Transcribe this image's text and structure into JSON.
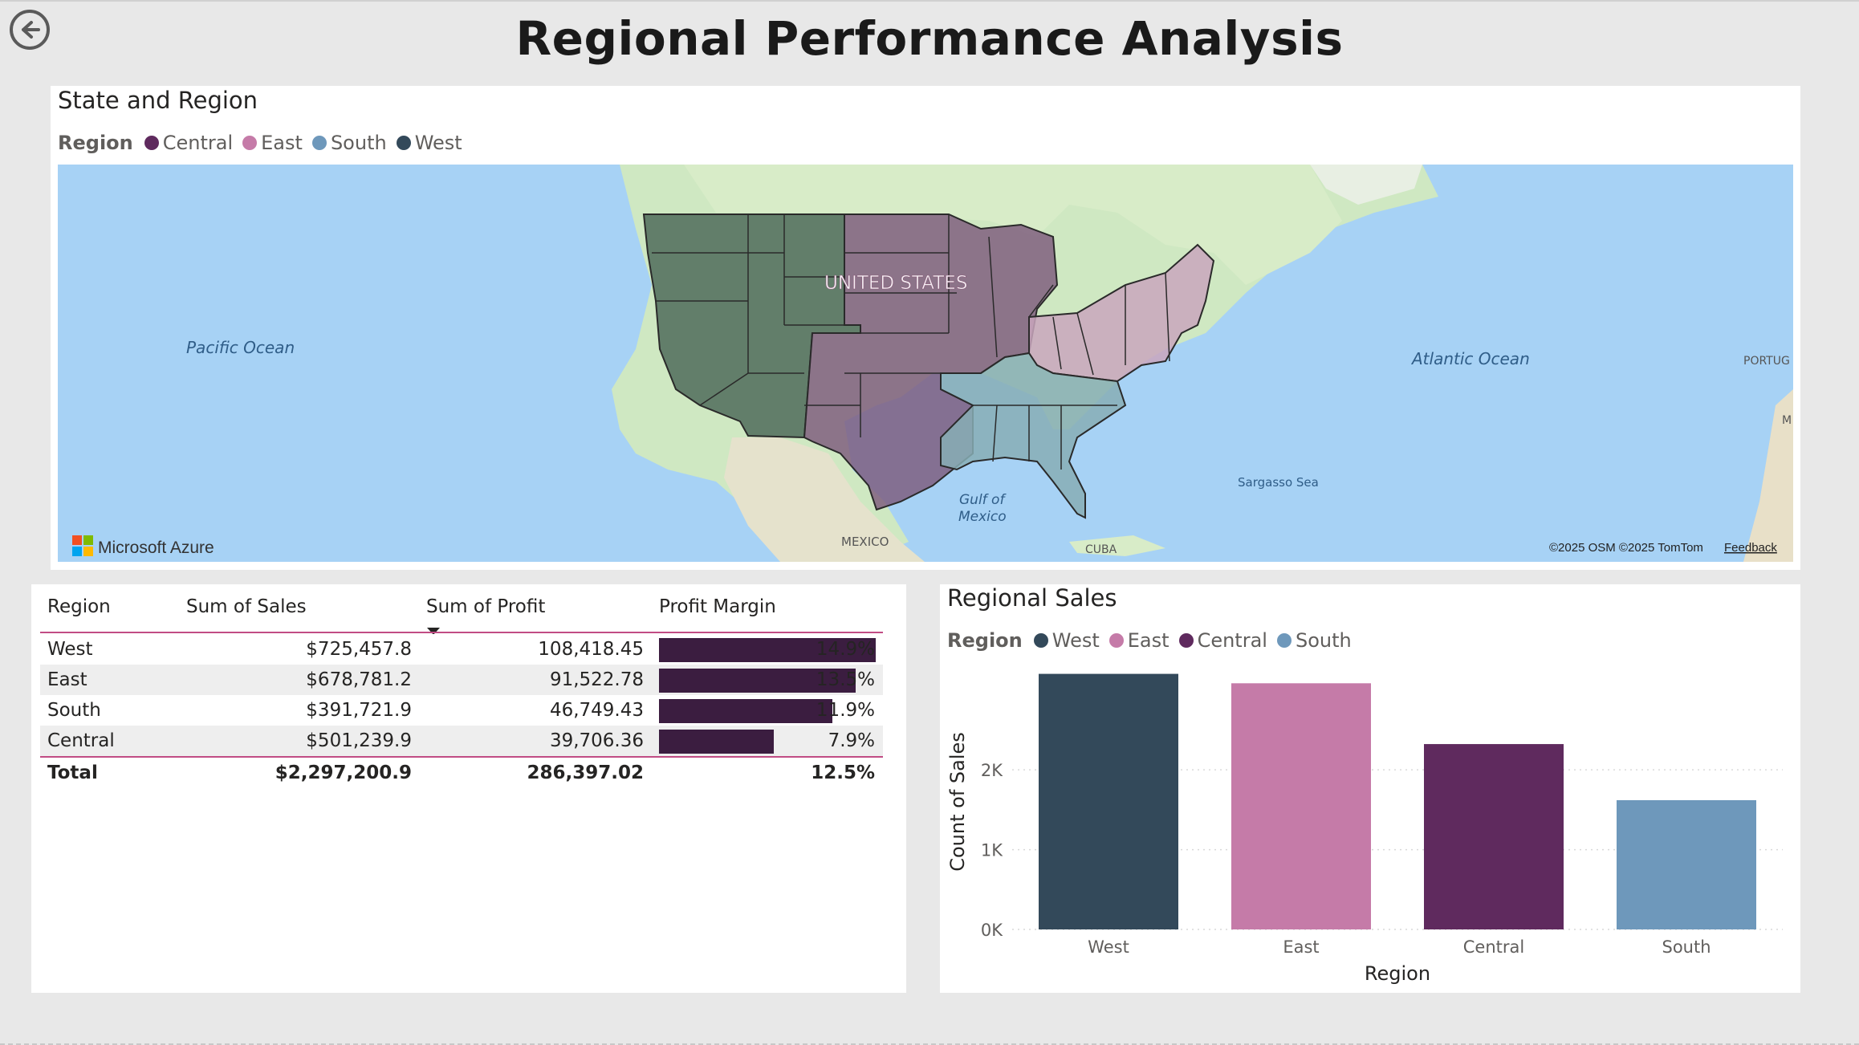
{
  "page": {
    "title": "Regional Performance Analysis"
  },
  "map_panel": {
    "title": "State and Region",
    "legend": {
      "title": "Region",
      "items": [
        {
          "label": "Central",
          "color": "#5f2a5e"
        },
        {
          "label": "East",
          "color": "#c57ba8"
        },
        {
          "label": "South",
          "color": "#6e98bb"
        },
        {
          "label": "West",
          "color": "#33495a"
        }
      ]
    },
    "labels": {
      "country": "UNITED STATES",
      "pacific": "Pacific Ocean",
      "atlantic": "Atlantic Ocean",
      "gulf_line1": "Gulf of",
      "gulf_line2": "Mexico",
      "sargasso": "Sargasso Sea",
      "mexico": "MEXICO",
      "cuba": "CUBA",
      "portugal": "PORTUG",
      "morocco": "M"
    },
    "provider": "Microsoft Azure",
    "attribution": "©2025 OSM  ©2025 TomTom",
    "feedback": "Feedback"
  },
  "table_panel": {
    "columns": [
      "Region",
      "Sum of Sales",
      "Sum of Profit",
      "Profit Margin"
    ],
    "rows": [
      {
        "region": "West",
        "sales": "$725,457.8",
        "profit": "108,418.45",
        "margin": "14.9%",
        "margin_value": 14.9
      },
      {
        "region": "East",
        "sales": "$678,781.2",
        "profit": "91,522.78",
        "margin": "13.5%",
        "margin_value": 13.5
      },
      {
        "region": "South",
        "sales": "$391,721.9",
        "profit": "46,749.43",
        "margin": "11.9%",
        "margin_value": 11.9
      },
      {
        "region": "Central",
        "sales": "$501,239.9",
        "profit": "39,706.36",
        "margin": "7.9%",
        "margin_value": 7.9
      }
    ],
    "total": {
      "label": "Total",
      "sales": "$2,297,200.9",
      "profit": "286,397.02",
      "margin": "12.5%"
    },
    "bar_color": "#3b1d40"
  },
  "chart_panel": {
    "title": "Regional Sales",
    "legend": {
      "title": "Region",
      "items": [
        {
          "label": "West",
          "color": "#33495a"
        },
        {
          "label": "East",
          "color": "#c57ba8"
        },
        {
          "label": "Central",
          "color": "#5f2a5e"
        },
        {
          "label": "South",
          "color": "#6e98bb"
        }
      ]
    }
  },
  "chart_data": {
    "type": "bar",
    "title": "Regional Sales",
    "categories": [
      "West",
      "East",
      "Central",
      "South"
    ],
    "values": [
      3203,
      3085,
      2323,
      1620
    ],
    "colors": [
      "#33495a",
      "#c57ba8",
      "#5f2a5e",
      "#6e98bb"
    ],
    "xlabel": "Region",
    "ylabel": "Count of Sales",
    "yticks": [
      "0K",
      "1K",
      "2K"
    ],
    "ylim": [
      0,
      3400
    ],
    "grid": true,
    "legend": "top-left"
  }
}
